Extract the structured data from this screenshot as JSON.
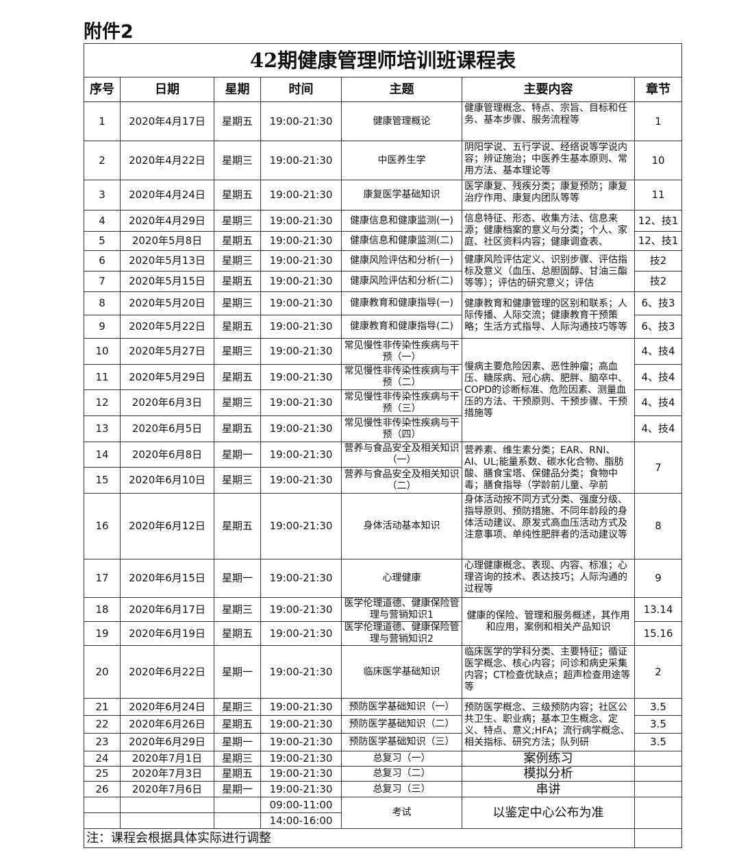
{
  "attachment": "附件2",
  "title": "42期健康管理师培训班课程表",
  "headers": [
    "序号",
    "日期",
    "星期",
    "时间",
    "主题",
    "主要内容",
    "章节"
  ],
  "rows": [
    {
      "no": "1",
      "date": "2020年4月17日",
      "week": "星期五",
      "time": "19:00-21:30",
      "topic": "健康管理概论",
      "content": "健康管理概念、特点、宗旨、目标和任务、基本步骤、服务流程等",
      "chapter": "1"
    },
    {
      "no": "2",
      "date": "2020年4月22日",
      "week": "星期三",
      "time": "19:00-21:30",
      "topic": "中医养生学",
      "content": "阴阳学说、五行学说、经络说等学说内容；辨证施治；中医养生基本原则、常用方法、基本理论等",
      "chapter": "10"
    },
    {
      "no": "3",
      "date": "2020年4月24日",
      "week": "星期五",
      "time": "19:00-21:30",
      "topic": "康复医学基础知识",
      "content": "医学康复、残疾分类；康复预防；康复治疗作用、康复内团队等等",
      "chapter": "11"
    },
    {
      "no": "4",
      "date": "2020年4月29日",
      "week": "星期三",
      "time": "19:00-21:30",
      "topic": "健康信息和健康监测(一)",
      "content": "信息特征、形态、收集方法、信息来源；健康档案的意义与分类；个人、家庭、社区资料内容；健康调查表、",
      "chapter": "12、技1"
    },
    {
      "no": "5",
      "date": "2020年5月8日",
      "week": "星期五",
      "time": "19:00-21:30",
      "topic": "健康信息和健康监测(二)",
      "content": null,
      "chapter": "12、技1"
    },
    {
      "no": "6",
      "date": "2020年5月13日",
      "week": "星期三",
      "time": "19:00-21:30",
      "topic": "健康风险评估和分析(一)",
      "content": "健康风险评估定义、识别步骤、评估指标及意义（血压、总胆固醇、甘油三酯等等）；评估的研究意义；评估",
      "chapter": "技2"
    },
    {
      "no": "7",
      "date": "2020年5月15日",
      "week": "星期五",
      "time": "19:00-21:30",
      "topic": "健康风险评估和分析(二)",
      "content": null,
      "chapter": "技2"
    },
    {
      "no": "8",
      "date": "2020年5月20日",
      "week": "星期三",
      "time": "19:00-21:30",
      "topic": "健康教育和健康指导(一)",
      "content": "健康教育和健康管理的区别和联系；人际传播、人际交流；健康教育干预策略；生活方式指导、人际沟通技巧等等",
      "chapter": "6、技3"
    },
    {
      "no": "9",
      "date": "2020年5月22日",
      "week": "星期五",
      "time": "19:00-21:30",
      "topic": "健康教育和健康指导(二)",
      "content": null,
      "chapter": "6、技3"
    },
    {
      "no": "10",
      "date": "2020年5月27日",
      "week": "星期三",
      "time": "19:00-21:30",
      "topic": "常见慢性非传染性疾病与干预（一）",
      "content": "慢病主要危险因素、恶性肿瘤；高血压、糖尿病、冠心病、肥胖、脑卒中、COPD的诊断标准、危险因素、测量血压的方法、干预原则、干预步骤、干预措施等",
      "chapter": "4、技4"
    },
    {
      "no": "11",
      "date": "2020年5月29日",
      "week": "星期五",
      "time": "19:00-21:30",
      "topic": "常见慢性非传染性疾病与干预（二）",
      "content": null,
      "chapter": "4、技4"
    },
    {
      "no": "12",
      "date": "2020年6月3日",
      "week": "星期三",
      "time": "19:00-21:30",
      "topic": "常见慢性非传染性疾病与干预（三）",
      "content": null,
      "chapter": "4、技4"
    },
    {
      "no": "13",
      "date": "2020年6月5日",
      "week": "星期五",
      "time": "19:00-21:30",
      "topic": "常见慢性非传染性疾病与干预（四）",
      "content": null,
      "chapter": "4、技4"
    },
    {
      "no": "14",
      "date": "2020年6月8日",
      "week": "星期一",
      "time": "19:00-21:30",
      "topic": "营养与食品安全及相关知识（一）",
      "content": "营养素、维生素分类；EAR、RNI、AI、UL;能量系数、碳水化合物、脂肪酸、膳食宝塔、保健品分类；食物中毒；膳食指导（学龄前儿童、孕前",
      "chapter": "7"
    },
    {
      "no": "15",
      "date": "2020年6月10日",
      "week": "星期三",
      "time": "19:00-21:30",
      "topic": "营养与食品安全及相关知识（二）",
      "content": null,
      "chapter": null
    },
    {
      "no": "16",
      "date": "2020年6月12日",
      "week": "星期五",
      "time": "19:00-21:30",
      "topic": "身体活动基本知识",
      "content": "身体活动按不同方式分类、强度分级、指导原则、预防措施、不同年龄段的身体活动建议、原发式高血压活动方式及注意事项、单纯性肥胖者的活动建议等",
      "chapter": "8"
    },
    {
      "no": "17",
      "date": "2020年6月15日",
      "week": "星期一",
      "time": "19:00-21:30",
      "topic": "心理健康",
      "content": "心理健康概念、表现、内容、标准；心理咨询的技术、表达技巧；人际沟通的过程等",
      "chapter": "9"
    },
    {
      "no": "18",
      "date": "2020年6月17日",
      "week": "星期三",
      "time": "19:00-21:30",
      "topic": "医学伦理道德、健康保险管理与营销知识1",
      "content": "健康的保险、管理和服务概述，其作用和应用，案例和相关产品知识",
      "chapter": "13.14"
    },
    {
      "no": "19",
      "date": "2020年6月19日",
      "week": "星期五",
      "time": "19:00-21:30",
      "topic": "医学伦理道德、健康保险管理与营销知识2",
      "content": null,
      "chapter": "15.16"
    },
    {
      "no": "20",
      "date": "2020年6月22日",
      "week": "星期一",
      "time": "19:00-21:30",
      "topic": "临床医学基础知识",
      "content": "临床医学的学科分类、主要特征；循证医学概念、核心内容；问诊和病史采集内容；CT检查优缺点；超声检查用途等等",
      "chapter": "2"
    },
    {
      "no": "21",
      "date": "2020年6月24日",
      "week": "星期三",
      "time": "19:00-21:30",
      "topic": "预防医学基础知识（一）",
      "content": "预防医学概念、三级预防内容；社区公共卫生、职业病；基本卫生概念、定义、特点、意义;HFA；流行病学概念、相关指标、研究方法；队列研",
      "chapter": "3.5"
    },
    {
      "no": "22",
      "date": "2020年6月26日",
      "week": "星期五",
      "time": "19:00-21:30",
      "topic": "预防医学基础知识（二）",
      "content": null,
      "chapter": "3.5"
    },
    {
      "no": "23",
      "date": "2020年6月29日",
      "week": "星期一",
      "time": "19:00-21:30",
      "topic": "预防医学基础知识（三）",
      "content": null,
      "chapter": "3.5"
    },
    {
      "no": "24",
      "date": "2020年7月1日",
      "week": "星期三",
      "time": "19:00-21:30",
      "topic": "总复习（一）",
      "content": "案例练习",
      "chapter": ""
    },
    {
      "no": "25",
      "date": "2020年7月3日",
      "week": "星期五",
      "time": "19:00-21:30",
      "topic": "总复习（二）",
      "content": "模拟分析",
      "chapter": ""
    },
    {
      "no": "26",
      "date": "2020年7月6日",
      "week": "星期一",
      "time": "19:00-21:30",
      "topic": "总复习（三）",
      "content": "串讲",
      "chapter": ""
    }
  ],
  "exam": {
    "times": [
      "09:00-11:00",
      "14:00-16:00"
    ],
    "topic": "考试",
    "content": "以鉴定中心公布为准",
    "chapter": ""
  },
  "note": "注：课程会根据具体实际进行调整"
}
